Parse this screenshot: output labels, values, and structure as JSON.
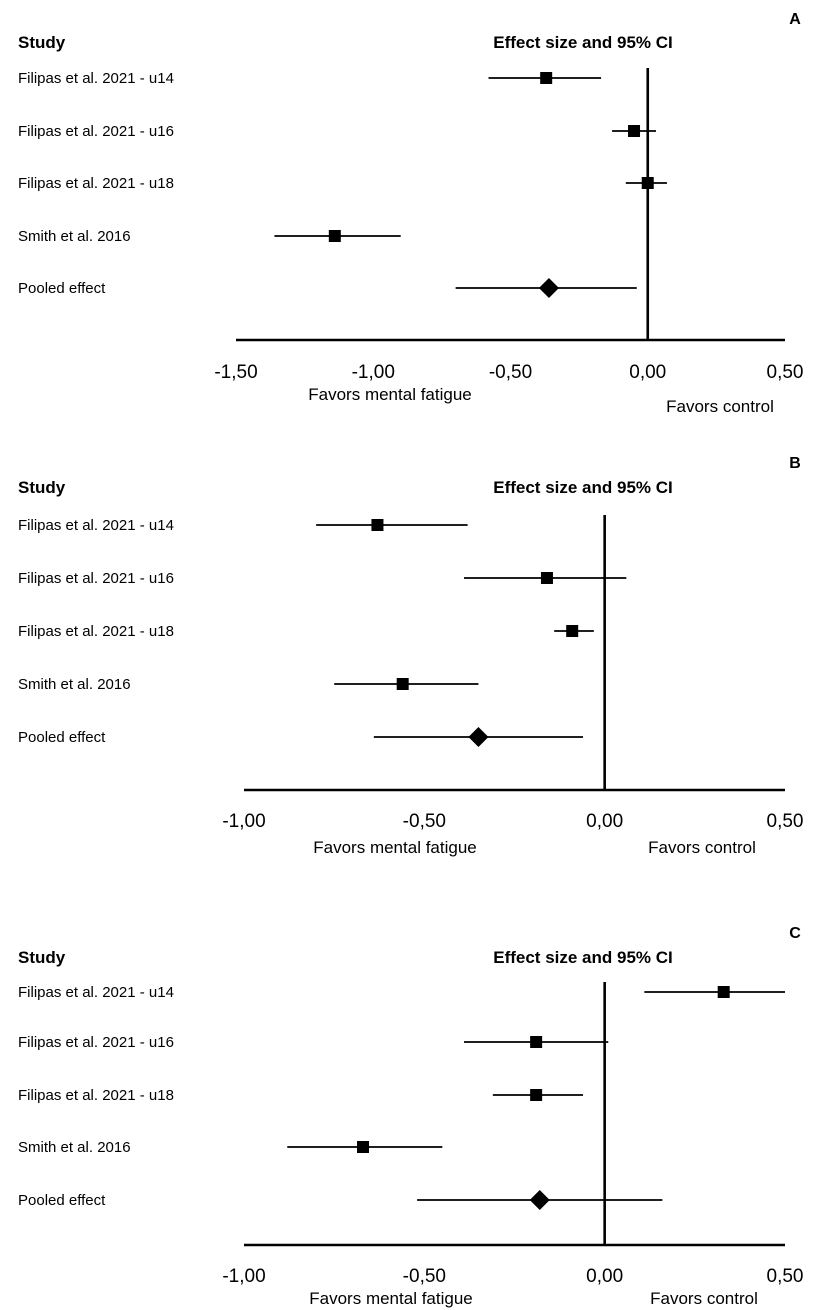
{
  "chart_data": [
    {
      "type": "forest",
      "panel": "A",
      "header_study": "Study",
      "header_effect": "Effect size and 95% CI",
      "studies": [
        {
          "label": "Filipas et al. 2021 - u14",
          "effect": -0.37,
          "ci": [
            -0.58,
            -0.17
          ],
          "marker": "square"
        },
        {
          "label": "Filipas et al. 2021 - u16",
          "effect": -0.05,
          "ci": [
            -0.13,
            0.03
          ],
          "marker": "square"
        },
        {
          "label": "Filipas et al. 2021 - u18",
          "effect": 0.0,
          "ci": [
            -0.08,
            0.07
          ],
          "marker": "square"
        },
        {
          "label": "Smith et al. 2016",
          "effect": -1.14,
          "ci": [
            -1.36,
            -0.9
          ],
          "marker": "square"
        },
        {
          "label": "Pooled effect",
          "effect": -0.36,
          "ci": [
            -0.7,
            -0.04
          ],
          "marker": "diamond"
        }
      ],
      "xlim": [
        -1.5,
        0.5
      ],
      "xticks": [
        "-1,50",
        "-1,00",
        "-0,50",
        "0,00",
        "0,50"
      ],
      "xtick_values": [
        -1.5,
        -1.0,
        -0.5,
        0.0,
        0.5
      ],
      "favors_left": "Favors mental fatigue",
      "favors_right": "Favors control",
      "reference_line": 0.0
    },
    {
      "type": "forest",
      "panel": "B",
      "header_study": "Study",
      "header_effect": "Effect size and 95% CI",
      "studies": [
        {
          "label": "Filipas et al. 2021 - u14",
          "effect": -0.63,
          "ci": [
            -0.8,
            -0.38
          ],
          "marker": "square"
        },
        {
          "label": "Filipas et al. 2021 - u16",
          "effect": -0.16,
          "ci": [
            -0.39,
            0.06
          ],
          "marker": "square"
        },
        {
          "label": "Filipas et al. 2021 - u18",
          "effect": -0.09,
          "ci": [
            -0.14,
            -0.03
          ],
          "marker": "square"
        },
        {
          "label": "Smith et al. 2016",
          "effect": -0.56,
          "ci": [
            -0.75,
            -0.35
          ],
          "marker": "square"
        },
        {
          "label": "Pooled effect",
          "effect": -0.35,
          "ci": [
            -0.64,
            -0.06
          ],
          "marker": "diamond"
        }
      ],
      "xlim": [
        -1.0,
        0.5
      ],
      "xticks": [
        "-1,00",
        "-0,50",
        "0,00",
        "0,50"
      ],
      "xtick_values": [
        -1.0,
        -0.5,
        0.0,
        0.5
      ],
      "favors_left": "Favors mental fatigue",
      "favors_right": "Favors control",
      "reference_line": 0.0
    },
    {
      "type": "forest",
      "panel": "C",
      "header_study": "Study",
      "header_effect": "Effect size and 95% CI",
      "studies": [
        {
          "label": "Filipas et al. 2021 - u14",
          "effect": 0.33,
          "ci": [
            0.11,
            0.5
          ],
          "marker": "square"
        },
        {
          "label": "Filipas et al. 2021 - u16",
          "effect": -0.19,
          "ci": [
            -0.39,
            0.01
          ],
          "marker": "square"
        },
        {
          "label": "Filipas et al. 2021 - u18",
          "effect": -0.19,
          "ci": [
            -0.31,
            -0.06
          ],
          "marker": "square"
        },
        {
          "label": "Smith et al. 2016",
          "effect": -0.67,
          "ci": [
            -0.88,
            -0.45
          ],
          "marker": "square"
        },
        {
          "label": "Pooled effect",
          "effect": -0.18,
          "ci": [
            -0.52,
            0.16
          ],
          "marker": "diamond"
        }
      ],
      "xlim": [
        -1.0,
        0.5
      ],
      "xticks": [
        "-1,00",
        "-0,50",
        "0,00",
        "0,50"
      ],
      "xtick_values": [
        -1.0,
        -0.5,
        0.0,
        0.5
      ],
      "favors_left": "Favors mental fatigue",
      "favors_right": "Favors control",
      "reference_line": 0.0
    }
  ]
}
